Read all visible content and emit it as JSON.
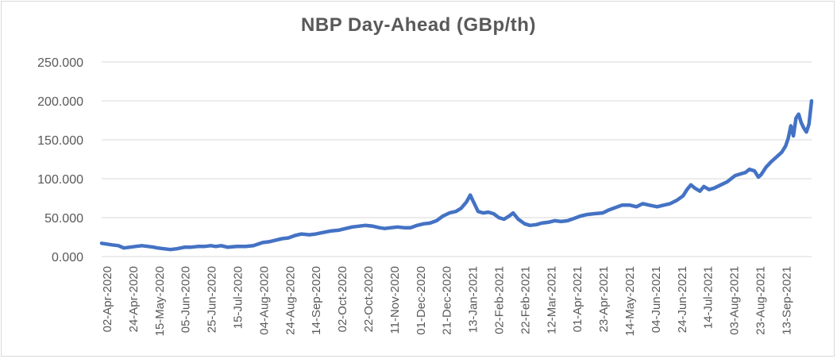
{
  "chart_data": {
    "type": "line",
    "title": "NBP Day-Ahead (GBp/th)",
    "xlabel": "",
    "ylabel": "",
    "ylim": [
      0,
      250
    ],
    "y_ticks": [
      "0.000",
      "50.000",
      "100.000",
      "150.000",
      "200.000",
      "250.000"
    ],
    "y_tick_values": [
      0,
      50,
      100,
      150,
      200,
      250
    ],
    "x_tick_labels": [
      "02-Apr-2020",
      "24-Apr-2020",
      "15-May-2020",
      "05-Jun-2020",
      "25-Jun-2020",
      "15-Jul-2020",
      "04-Aug-2020",
      "24-Aug-2020",
      "14-Sep-2020",
      "02-Oct-2020",
      "22-Oct-2020",
      "11-Nov-2020",
      "01-Dec-2020",
      "21-Dec-2020",
      "13-Jan-2021",
      "02-Feb-2021",
      "22-Feb-2021",
      "12-Mar-2021",
      "01-Apr-2021",
      "23-Apr-2021",
      "14-May-2021",
      "04-Jun-2021",
      "24-Jun-2021",
      "14-Jul-2021",
      "03-Aug-2021",
      "23-Aug-2021",
      "13-Sep-2021"
    ],
    "grid": true,
    "line_color": "#4472c4",
    "series": [
      {
        "points": [
          [
            "2020-04-02",
            17
          ],
          [
            "2020-04-06",
            16
          ],
          [
            "2020-04-10",
            15
          ],
          [
            "2020-04-15",
            14
          ],
          [
            "2020-04-19",
            11
          ],
          [
            "2020-04-24",
            12
          ],
          [
            "2020-04-28",
            13
          ],
          [
            "2020-05-03",
            14
          ],
          [
            "2020-05-08",
            13
          ],
          [
            "2020-05-12",
            12
          ],
          [
            "2020-05-15",
            11
          ],
          [
            "2020-05-20",
            10
          ],
          [
            "2020-05-25",
            9
          ],
          [
            "2020-05-30",
            10
          ],
          [
            "2020-06-05",
            12
          ],
          [
            "2020-06-10",
            12
          ],
          [
            "2020-06-15",
            13
          ],
          [
            "2020-06-20",
            13
          ],
          [
            "2020-06-25",
            14
          ],
          [
            "2020-06-29",
            13
          ],
          [
            "2020-07-03",
            14
          ],
          [
            "2020-07-08",
            12
          ],
          [
            "2020-07-15",
            13
          ],
          [
            "2020-07-22",
            13
          ],
          [
            "2020-07-28",
            14
          ],
          [
            "2020-08-04",
            18
          ],
          [
            "2020-08-09",
            19
          ],
          [
            "2020-08-14",
            21
          ],
          [
            "2020-08-19",
            23
          ],
          [
            "2020-08-24",
            24
          ],
          [
            "2020-08-29",
            27
          ],
          [
            "2020-09-03",
            29
          ],
          [
            "2020-09-09",
            28
          ],
          [
            "2020-09-14",
            29
          ],
          [
            "2020-09-20",
            31
          ],
          [
            "2020-09-26",
            33
          ],
          [
            "2020-10-02",
            34
          ],
          [
            "2020-10-07",
            36
          ],
          [
            "2020-10-12",
            38
          ],
          [
            "2020-10-17",
            39
          ],
          [
            "2020-10-22",
            40
          ],
          [
            "2020-10-28",
            39
          ],
          [
            "2020-11-02",
            37
          ],
          [
            "2020-11-06",
            36
          ],
          [
            "2020-11-11",
            37
          ],
          [
            "2020-11-16",
            38
          ],
          [
            "2020-11-21",
            37
          ],
          [
            "2020-11-26",
            37
          ],
          [
            "2020-12-01",
            40
          ],
          [
            "2020-12-06",
            42
          ],
          [
            "2020-12-11",
            43
          ],
          [
            "2020-12-16",
            46
          ],
          [
            "2020-12-21",
            52
          ],
          [
            "2020-12-26",
            56
          ],
          [
            "2020-12-31",
            58
          ],
          [
            "2021-01-04",
            62
          ],
          [
            "2021-01-08",
            70
          ],
          [
            "2021-01-11",
            79
          ],
          [
            "2021-01-13",
            72
          ],
          [
            "2021-01-17",
            58
          ],
          [
            "2021-01-21",
            56
          ],
          [
            "2021-01-25",
            57
          ],
          [
            "2021-01-29",
            55
          ],
          [
            "2021-02-02",
            50
          ],
          [
            "2021-02-06",
            48
          ],
          [
            "2021-02-10",
            52
          ],
          [
            "2021-02-13",
            56
          ],
          [
            "2021-02-17",
            48
          ],
          [
            "2021-02-22",
            42
          ],
          [
            "2021-02-26",
            40
          ],
          [
            "2021-03-03",
            41
          ],
          [
            "2021-03-07",
            43
          ],
          [
            "2021-03-12",
            44
          ],
          [
            "2021-03-17",
            46
          ],
          [
            "2021-03-22",
            45
          ],
          [
            "2021-03-27",
            46
          ],
          [
            "2021-04-01",
            49
          ],
          [
            "2021-04-06",
            52
          ],
          [
            "2021-04-11",
            54
          ],
          [
            "2021-04-16",
            55
          ],
          [
            "2021-04-23",
            56
          ],
          [
            "2021-04-28",
            60
          ],
          [
            "2021-05-03",
            63
          ],
          [
            "2021-05-08",
            66
          ],
          [
            "2021-05-14",
            66
          ],
          [
            "2021-05-19",
            64
          ],
          [
            "2021-05-24",
            68
          ],
          [
            "2021-05-29",
            66
          ],
          [
            "2021-06-04",
            64
          ],
          [
            "2021-06-09",
            66
          ],
          [
            "2021-06-14",
            68
          ],
          [
            "2021-06-19",
            72
          ],
          [
            "2021-06-24",
            78
          ],
          [
            "2021-06-27",
            86
          ],
          [
            "2021-06-30",
            92
          ],
          [
            "2021-07-03",
            88
          ],
          [
            "2021-07-07",
            84
          ],
          [
            "2021-07-10",
            90
          ],
          [
            "2021-07-14",
            86
          ],
          [
            "2021-07-18",
            88
          ],
          [
            "2021-07-23",
            92
          ],
          [
            "2021-07-28",
            96
          ],
          [
            "2021-08-03",
            104
          ],
          [
            "2021-08-07",
            106
          ],
          [
            "2021-08-11",
            108
          ],
          [
            "2021-08-14",
            112
          ],
          [
            "2021-08-18",
            110
          ],
          [
            "2021-08-21",
            102
          ],
          [
            "2021-08-23",
            105
          ],
          [
            "2021-08-27",
            115
          ],
          [
            "2021-08-31",
            122
          ],
          [
            "2021-09-04",
            128
          ],
          [
            "2021-09-08",
            134
          ],
          [
            "2021-09-11",
            142
          ],
          [
            "2021-09-13",
            152
          ],
          [
            "2021-09-15",
            168
          ],
          [
            "2021-09-17",
            155
          ],
          [
            "2021-09-19",
            178
          ],
          [
            "2021-09-21",
            183
          ],
          [
            "2021-09-23",
            172
          ],
          [
            "2021-09-25",
            165
          ],
          [
            "2021-09-27",
            160
          ],
          [
            "2021-09-29",
            170
          ],
          [
            "2021-10-01",
            200
          ]
        ]
      }
    ]
  }
}
